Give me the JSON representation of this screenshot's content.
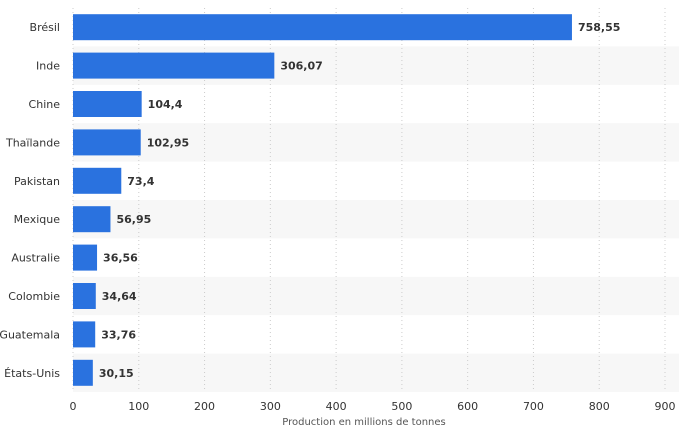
{
  "chart_data": {
    "type": "bar",
    "orientation": "horizontal",
    "categories": [
      "Brésil",
      "Inde",
      "Chine",
      "Thaïlande",
      "Pakistan",
      "Mexique",
      "Australie",
      "Colombie",
      "Guatemala",
      "États-Unis"
    ],
    "values": [
      758.55,
      306.07,
      104.4,
      102.95,
      73.4,
      56.95,
      36.56,
      34.64,
      33.76,
      30.15
    ],
    "value_labels": [
      "758,55",
      "306,07",
      "104,4",
      "102,95",
      "73,4",
      "56,95",
      "36,56",
      "34,64",
      "33,76",
      "30,15"
    ],
    "xlabel": "Production en millions de tonnes",
    "ylabel": "",
    "xlim": [
      0,
      900
    ],
    "xticks": [
      0,
      100,
      200,
      300,
      400,
      500,
      600,
      700,
      800,
      900
    ],
    "grid": true,
    "grid_style": "dotted vertical",
    "legend": "none",
    "bar_color": "#2a72df",
    "alt_row_color": "#f7f7f7"
  }
}
